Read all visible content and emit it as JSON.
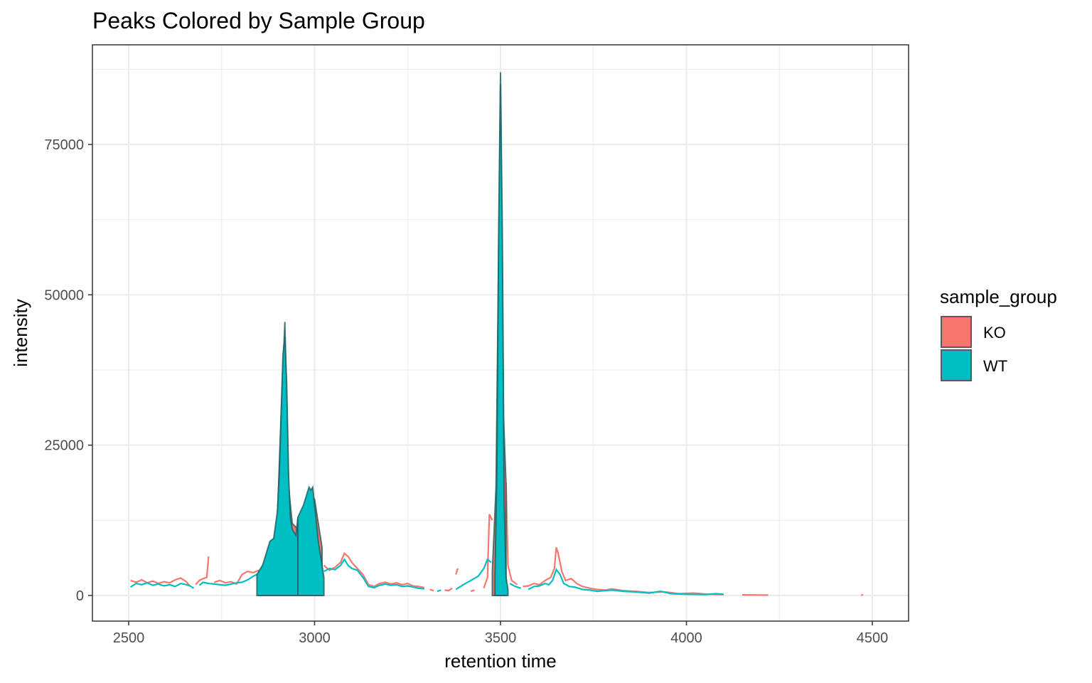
{
  "chart_data": {
    "type": "line",
    "title": "Peaks Colored by Sample Group",
    "x_label": "retention time",
    "y_label": "intensity",
    "legend_title": "sample_group",
    "xlim": [
      2402.5,
      4597.5
    ],
    "ylim": [
      -4260,
      91570
    ],
    "xticks": [
      2500,
      3000,
      3500,
      4000,
      4500
    ],
    "yticks": [
      0,
      25000,
      50000,
      75000
    ],
    "x_minor_ticks": [
      2750,
      3250,
      3750,
      4250
    ],
    "y_minor_ticks": [
      12500,
      37500,
      62500,
      87500
    ],
    "grid": true,
    "legend": "right",
    "series": [
      {
        "name": "KO",
        "color": "#F8766D",
        "x": [
          2505,
          2520,
          2535,
          2550,
          2565,
          2580,
          2595,
          2610,
          2625,
          2640,
          2655,
          2665,
          null,
          2680,
          2690,
          2700,
          2710,
          2715,
          null,
          2730,
          2745,
          2760,
          2775,
          2790,
          2805,
          2820,
          2835,
          2850,
          null,
          3025,
          3040,
          3055,
          3070,
          3080,
          3090,
          3100,
          3115,
          3130,
          3145,
          3160,
          3175,
          3190,
          3205,
          3220,
          3235,
          3250,
          3265,
          3280,
          3295,
          null,
          3310,
          3320,
          null,
          3350,
          3360,
          3370,
          null,
          3380,
          3385,
          null,
          3420,
          3430,
          null,
          3455,
          3465,
          3470,
          3478,
          null,
          3515,
          3520,
          3530,
          3545,
          null,
          3560,
          3575,
          3590,
          3605,
          3620,
          3635,
          3645,
          3650,
          3655,
          3665,
          3675,
          3690,
          3705,
          3720,
          3740,
          3760,
          3780,
          3800,
          3830,
          3860,
          3900,
          3940,
          3980,
          4020,
          4060,
          4100,
          null,
          4150,
          4200,
          4220,
          null,
          4470,
          4475
        ],
        "values": [
          2500,
          2200,
          2600,
          2100,
          2400,
          2000,
          2300,
          2100,
          2600,
          2900,
          2300,
          1500,
          null,
          1800,
          2500,
          2800,
          3000,
          6500,
          null,
          2200,
          2500,
          2100,
          2300,
          1900,
          3500,
          4000,
          3800,
          4200,
          null,
          5000,
          4200,
          4700,
          5500,
          7000,
          6500,
          5500,
          4500,
          3500,
          1800,
          1500,
          2000,
          2200,
          1900,
          2100,
          1800,
          2000,
          1600,
          1500,
          1300,
          null,
          1000,
          800,
          null,
          900,
          800,
          1200,
          null,
          3500,
          4500,
          null,
          700,
          900,
          null,
          1200,
          3000,
          13500,
          12500,
          null,
          18800,
          5000,
          2500,
          1800,
          null,
          1500,
          1600,
          2000,
          1800,
          2500,
          3000,
          4500,
          8000,
          7000,
          4000,
          2500,
          2800,
          2000,
          1500,
          1200,
          1000,
          900,
          1100,
          800,
          700,
          500,
          600,
          300,
          400,
          200,
          150,
          null,
          100,
          80,
          60,
          null,
          100,
          80
        ],
        "peaks": [
          {
            "x": [
              2850,
              2870,
              2890,
              2900,
              2910,
              2920,
              2930,
              2940,
              2955,
              2970,
              2985,
              3000,
              3010,
              3020
            ],
            "values": [
              3800,
              6000,
              9000,
              13000,
              30000,
              45500,
              18000,
              12000,
              11000,
              14000,
              17000,
              16000,
              12000,
              8000
            ]
          },
          {
            "x": [
              3478,
              3488,
              3500,
              3508,
              3515
            ],
            "values": [
              4000,
              18000,
              85000,
              30000,
              18500
            ]
          }
        ]
      },
      {
        "name": "WT",
        "color": "#00BFC4",
        "x": [
          2505,
          2520,
          2535,
          2550,
          2565,
          2580,
          2595,
          2610,
          2625,
          2640,
          2655,
          2665,
          2675,
          null,
          2690,
          2700,
          2715,
          2730,
          2745,
          2760,
          2775,
          2790,
          2805,
          2820,
          2835,
          2845,
          null,
          3025,
          3040,
          3055,
          3070,
          3080,
          3090,
          3100,
          3115,
          3130,
          3145,
          3160,
          3175,
          3190,
          3205,
          3220,
          3235,
          3250,
          3265,
          3280,
          3295,
          null,
          3330,
          3340,
          null,
          3380,
          3400,
          3420,
          3440,
          3455,
          3465,
          3475,
          null,
          3525,
          3540,
          3555,
          null,
          3575,
          3590,
          3605,
          3620,
          3630,
          3640,
          3650,
          3660,
          3670,
          3685,
          3700,
          3720,
          3740,
          3760,
          3780,
          3800,
          3830,
          3860,
          3900,
          3930,
          3960,
          4000,
          4050,
          4080,
          4100
        ],
        "values": [
          1400,
          2000,
          1800,
          2100,
          1700,
          1900,
          1600,
          1800,
          1500,
          2000,
          1800,
          1600,
          1200,
          null,
          1700,
          2200,
          2000,
          1900,
          1800,
          1700,
          1900,
          2100,
          2200,
          2600,
          3200,
          3500,
          null,
          4000,
          4500,
          4300,
          5000,
          6000,
          5000,
          4500,
          4200,
          3000,
          1500,
          1300,
          1700,
          1900,
          1700,
          1800,
          1500,
          1600,
          1400,
          1200,
          1100,
          null,
          700,
          900,
          null,
          1000,
          1800,
          2500,
          3200,
          4500,
          6000,
          5500,
          null,
          2000,
          1500,
          1200,
          null,
          1000,
          1500,
          1600,
          2000,
          1800,
          2500,
          4300,
          3500,
          2000,
          1500,
          1400,
          1000,
          900,
          700,
          800,
          900,
          700,
          600,
          400,
          700,
          300,
          200,
          150,
          300,
          200
        ],
        "peaks": [
          {
            "x": [
              2845,
              2860,
              2870,
              2880,
              2890,
              2900,
              2905,
              2910,
              2915,
              2920,
              2925,
              2930,
              2935,
              2940,
              2950,
              2955
            ],
            "values": [
              3500,
              5000,
              7000,
              9000,
              9500,
              14000,
              20000,
              30000,
              40000,
              43000,
              35000,
              20000,
              13000,
              11000,
              10000,
              13000
            ]
          },
          {
            "x": [
              2955,
              2970,
              2980,
              2985,
              2990,
              2995,
              3000,
              3010,
              3020,
              3025
            ],
            "values": [
              13000,
              15000,
              17000,
              18000,
              17500,
              18000,
              15000,
              9000,
              5000,
              3000
            ]
          },
          {
            "x": [
              3485,
              3490,
              3495,
              3500,
              3505,
              3510,
              3515,
              3520
            ],
            "values": [
              3000,
              20000,
              60000,
              87000,
              60000,
              15000,
              3000,
              1000
            ]
          }
        ]
      }
    ]
  }
}
